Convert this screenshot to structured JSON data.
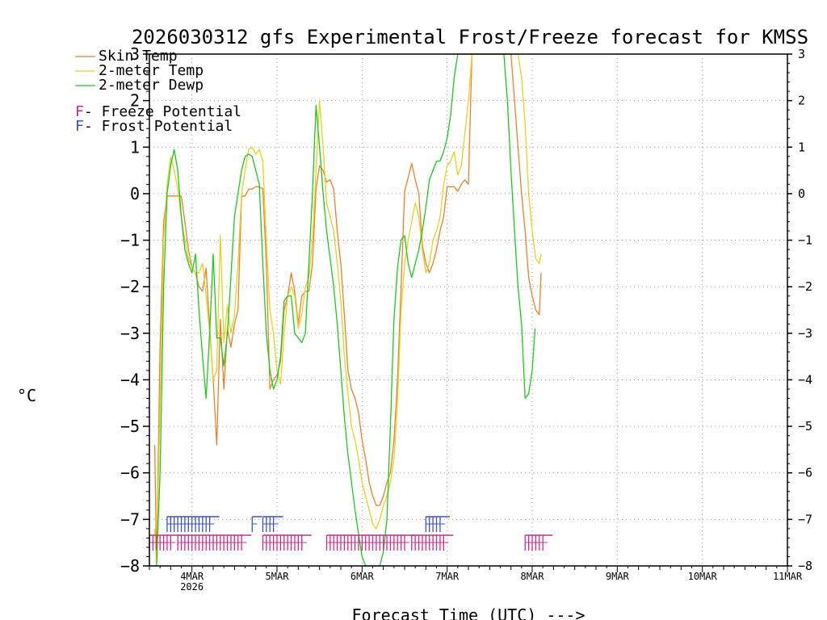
{
  "chart_data": {
    "type": "line",
    "title": "2026030312 gfs Experimental Frost/Freeze forecast for KMSS",
    "xlabel": "Forecast Time (UTC) --->",
    "ylabel": "°C",
    "ylim": [
      -8,
      3
    ],
    "yticks": [
      3,
      2,
      1,
      0,
      -1,
      -2,
      -3,
      -4,
      -5,
      -6,
      -7,
      -8
    ],
    "ytick_labels": [
      "3",
      "2",
      "1",
      "0",
      "−1",
      "−2",
      "−3",
      "−4",
      "−5",
      "−6",
      "−7",
      "−8"
    ],
    "xlim_hours": [
      12,
      192
    ],
    "xticks": [
      {
        "hour": 24,
        "label": "4MAR",
        "sublabel": "2026"
      },
      {
        "hour": 48,
        "label": "5MAR"
      },
      {
        "hour": 72,
        "label": "6MAR"
      },
      {
        "hour": 96,
        "label": "7MAR"
      },
      {
        "hour": 120,
        "label": "8MAR"
      },
      {
        "hour": 144,
        "label": "9MAR"
      },
      {
        "hour": 168,
        "label": "10MAR"
      },
      {
        "hour": 192,
        "label": "11MAR"
      }
    ],
    "grid": true,
    "legend": [
      {
        "name": "Skin Temp",
        "color": "#f07f2a"
      },
      {
        "name": "2-meter Temp",
        "color": "#e6d21e"
      },
      {
        "name": "2-meter Dewp",
        "color": "#1ec81e"
      }
    ],
    "potential_legend": [
      {
        "glyph": "F",
        "text": " - Freeze Potential",
        "color": "#d2288c"
      },
      {
        "glyph": "F",
        "text": " - Frost Potential",
        "color": "#3c50c8"
      }
    ],
    "series": [
      {
        "name": "Skin Temp",
        "color": "#f07f2a",
        "points": [
          [
            13.5,
            -5.4
          ],
          [
            14,
            -8.2
          ],
          [
            15,
            -3.3
          ],
          [
            16,
            -0.6
          ],
          [
            17,
            -0.05
          ],
          [
            18,
            -0.05
          ],
          [
            19,
            -0.05
          ],
          [
            20,
            -0.05
          ],
          [
            21,
            -0.05
          ],
          [
            22,
            -0.6
          ],
          [
            23,
            -1.2
          ],
          [
            24,
            -1.6
          ],
          [
            25,
            -1.7
          ],
          [
            26,
            -2.0
          ],
          [
            27,
            -2.1
          ],
          [
            28,
            -1.6
          ],
          [
            29,
            -2.9
          ],
          [
            30,
            -4.0
          ],
          [
            31,
            -5.4
          ],
          [
            32,
            -2.7
          ],
          [
            33,
            -4.2
          ],
          [
            34,
            -2.9
          ],
          [
            35,
            -3.3
          ],
          [
            36,
            -2.8
          ],
          [
            37,
            -2.5
          ],
          [
            38,
            -0.05
          ],
          [
            39,
            -0.05
          ],
          [
            40,
            0.1
          ],
          [
            41,
            0.1
          ],
          [
            42,
            0.15
          ],
          [
            43,
            0.15
          ],
          [
            44,
            0.1
          ],
          [
            45,
            -1.5
          ],
          [
            46,
            -4.2
          ],
          [
            47,
            -4.0
          ],
          [
            48,
            -3.9
          ],
          [
            49,
            -3.6
          ],
          [
            50,
            -2.5
          ],
          [
            51,
            -2.2
          ],
          [
            52,
            -1.7
          ],
          [
            53,
            -2.1
          ],
          [
            54,
            -2.8
          ],
          [
            55,
            -2.2
          ],
          [
            56,
            -2.1
          ],
          [
            57,
            -2.1
          ],
          [
            58,
            -1.5
          ],
          [
            59,
            0.1
          ],
          [
            60,
            0.6
          ],
          [
            61,
            0.5
          ],
          [
            62,
            0.25
          ],
          [
            63,
            0.3
          ],
          [
            64,
            0.1
          ],
          [
            65,
            -0.8
          ],
          [
            66,
            -1.5
          ],
          [
            67,
            -2.6
          ],
          [
            68,
            -3.8
          ],
          [
            69,
            -4.2
          ],
          [
            70,
            -4.4
          ],
          [
            71,
            -4.7
          ],
          [
            72,
            -5.3
          ],
          [
            73,
            -5.7
          ],
          [
            74,
            -6.2
          ],
          [
            75,
            -6.5
          ],
          [
            76,
            -6.7
          ],
          [
            77,
            -6.7
          ],
          [
            78,
            -6.5
          ],
          [
            79,
            -6.2
          ],
          [
            80,
            -6.0
          ],
          [
            81,
            -5.3
          ],
          [
            82,
            -4.0
          ],
          [
            83,
            -2.0
          ],
          [
            84,
            0.05
          ],
          [
            85,
            0.35
          ],
          [
            86,
            0.65
          ],
          [
            87,
            0.3
          ],
          [
            88,
            0.0
          ],
          [
            89,
            -1.1
          ],
          [
            90,
            -1.5
          ],
          [
            91,
            -1.7
          ],
          [
            92,
            -1.5
          ],
          [
            93,
            -1.2
          ],
          [
            94,
            -0.8
          ],
          [
            95,
            -0.5
          ],
          [
            96,
            0.15
          ],
          [
            97,
            0.15
          ],
          [
            98,
            0.15
          ],
          [
            99,
            0.05
          ],
          [
            100,
            0.2
          ],
          [
            101,
            0.3
          ],
          [
            102,
            0.2
          ],
          [
            103,
            3.3
          ],
          [
            114,
            3.3
          ],
          [
            115,
            2.0
          ],
          [
            116,
            1.0
          ],
          [
            117,
            0.0
          ],
          [
            118,
            -0.8
          ],
          [
            119,
            -1.8
          ],
          [
            120,
            -2.2
          ],
          [
            121,
            -2.5
          ],
          [
            122,
            -2.6
          ],
          [
            122.5,
            -1.7
          ]
        ]
      },
      {
        "name": "2-meter Temp",
        "color": "#e6d21e",
        "points": [
          [
            13.5,
            -7.2
          ],
          [
            14,
            -8.2
          ],
          [
            15,
            -4.5
          ],
          [
            16,
            -1.0
          ],
          [
            17,
            0.2
          ],
          [
            18,
            0.8
          ],
          [
            19,
            0.5
          ],
          [
            20,
            0.1
          ],
          [
            21,
            -0.5
          ],
          [
            22,
            -1.0
          ],
          [
            23,
            -1.4
          ],
          [
            24,
            -1.6
          ],
          [
            25,
            -1.7
          ],
          [
            26,
            -1.7
          ],
          [
            27,
            -1.5
          ],
          [
            28,
            -2.2
          ],
          [
            29,
            -3.0
          ],
          [
            30,
            -4.0
          ],
          [
            31,
            -3.8
          ],
          [
            32,
            -0.9
          ],
          [
            33,
            -3.2
          ],
          [
            34,
            -2.4
          ],
          [
            35,
            -3.0
          ],
          [
            36,
            -2.6
          ],
          [
            37,
            -1.5
          ],
          [
            38,
            0.0
          ],
          [
            39,
            0.5
          ],
          [
            40,
            0.95
          ],
          [
            41,
            1.0
          ],
          [
            42,
            0.85
          ],
          [
            43,
            0.95
          ],
          [
            44,
            0.7
          ],
          [
            45,
            -1.0
          ],
          [
            46,
            -2.5
          ],
          [
            47,
            -3.0
          ],
          [
            48,
            -3.8
          ],
          [
            49,
            -4.1
          ],
          [
            50,
            -3.0
          ],
          [
            51,
            -2.2
          ],
          [
            52,
            -2.0
          ],
          [
            53,
            -2.2
          ],
          [
            54,
            -2.9
          ],
          [
            55,
            -2.6
          ],
          [
            56,
            -2.0
          ],
          [
            57,
            -1.8
          ],
          [
            58,
            -1.0
          ],
          [
            59,
            0.5
          ],
          [
            60,
            2.0
          ],
          [
            61,
            1.0
          ],
          [
            62,
            -0.2
          ],
          [
            63,
            -0.5
          ],
          [
            64,
            -0.8
          ],
          [
            65,
            -1.5
          ],
          [
            66,
            -2.3
          ],
          [
            67,
            -3.5
          ],
          [
            68,
            -4.3
          ],
          [
            69,
            -5.0
          ],
          [
            70,
            -5.3
          ],
          [
            71,
            -5.7
          ],
          [
            72,
            -6.2
          ],
          [
            73,
            -6.5
          ],
          [
            74,
            -6.8
          ],
          [
            75,
            -7.1
          ],
          [
            76,
            -7.2
          ],
          [
            77,
            -7.0
          ],
          [
            78,
            -6.7
          ],
          [
            79,
            -6.5
          ],
          [
            80,
            -6.2
          ],
          [
            81,
            -5.7
          ],
          [
            82,
            -4.5
          ],
          [
            83,
            -2.5
          ],
          [
            84,
            -1.5
          ],
          [
            85,
            -1.0
          ],
          [
            86,
            -0.6
          ],
          [
            87,
            -0.2
          ],
          [
            88,
            -0.5
          ],
          [
            89,
            -1.2
          ],
          [
            90,
            -1.7
          ],
          [
            91,
            -1.5
          ],
          [
            92,
            -1.0
          ],
          [
            93,
            -0.8
          ],
          [
            94,
            -0.5
          ],
          [
            95,
            0.2
          ],
          [
            96,
            0.6
          ],
          [
            97,
            0.7
          ],
          [
            98,
            0.9
          ],
          [
            99,
            0.4
          ],
          [
            100,
            0.6
          ],
          [
            101,
            1.3
          ],
          [
            102,
            2.0
          ],
          [
            103,
            3.3
          ],
          [
            116,
            3.3
          ],
          [
            117,
            2.5
          ],
          [
            118,
            1.5
          ],
          [
            119,
            0.0
          ],
          [
            120,
            -0.8
          ],
          [
            121,
            -1.4
          ],
          [
            122,
            -1.5
          ],
          [
            122.5,
            -1.3
          ]
        ]
      },
      {
        "name": "2-meter Dewp",
        "color": "#1ec81e",
        "points": [
          [
            14,
            -8.2
          ],
          [
            15,
            -6.0
          ],
          [
            16,
            -2.0
          ],
          [
            17,
            0.0
          ],
          [
            18,
            0.6
          ],
          [
            19,
            0.95
          ],
          [
            20,
            0.5
          ],
          [
            21,
            -0.5
          ],
          [
            22,
            -1.2
          ],
          [
            23,
            -1.5
          ],
          [
            24,
            -1.7
          ],
          [
            25,
            -1.3
          ],
          [
            26,
            -2.5
          ],
          [
            27,
            -3.5
          ],
          [
            28,
            -4.4
          ],
          [
            29,
            -3.0
          ],
          [
            30,
            -1.3
          ],
          [
            31,
            -3.1
          ],
          [
            32,
            -3.1
          ],
          [
            33,
            -3.7
          ],
          [
            34,
            -3.0
          ],
          [
            35,
            -1.8
          ],
          [
            36,
            -0.5
          ],
          [
            37,
            0.0
          ],
          [
            38,
            0.5
          ],
          [
            39,
            0.8
          ],
          [
            40,
            0.85
          ],
          [
            41,
            0.8
          ],
          [
            42,
            0.5
          ],
          [
            43,
            0.2
          ],
          [
            44,
            -1.5
          ],
          [
            45,
            -3.0
          ],
          [
            46,
            -3.8
          ],
          [
            47,
            -4.2
          ],
          [
            48,
            -4.0
          ],
          [
            49,
            -3.5
          ],
          [
            50,
            -2.3
          ],
          [
            51,
            -2.2
          ],
          [
            52,
            -2.2
          ],
          [
            53,
            -3.0
          ],
          [
            54,
            -3.1
          ],
          [
            55,
            -3.2
          ],
          [
            56,
            -3.0
          ],
          [
            57,
            -1.5
          ],
          [
            58,
            0.0
          ],
          [
            59,
            1.9
          ],
          [
            60,
            1.0
          ],
          [
            61,
            0.0
          ],
          [
            62,
            -0.8
          ],
          [
            63,
            -1.4
          ],
          [
            64,
            -2.0
          ],
          [
            65,
            -2.8
          ],
          [
            66,
            -3.8
          ],
          [
            67,
            -4.8
          ],
          [
            68,
            -5.6
          ],
          [
            69,
            -6.2
          ],
          [
            70,
            -6.8
          ],
          [
            71,
            -7.3
          ],
          [
            72,
            -7.8
          ],
          [
            73,
            -8.1
          ],
          [
            74,
            -8.2
          ],
          [
            75,
            -8.2
          ],
          [
            76,
            -8.2
          ],
          [
            77,
            -8.0
          ],
          [
            78,
            -7.7
          ],
          [
            79,
            -7.0
          ],
          [
            80,
            -5.0
          ],
          [
            81,
            -2.7
          ],
          [
            82,
            -1.6
          ],
          [
            83,
            -1.0
          ],
          [
            84,
            -0.9
          ],
          [
            85,
            -1.5
          ],
          [
            86,
            -1.8
          ],
          [
            87,
            -1.5
          ],
          [
            88,
            -1.2
          ],
          [
            89,
            -0.8
          ],
          [
            90,
            -0.3
          ],
          [
            91,
            0.3
          ],
          [
            92,
            0.5
          ],
          [
            93,
            0.7
          ],
          [
            94,
            0.7
          ],
          [
            95,
            0.9
          ],
          [
            96,
            1.2
          ],
          [
            97,
            1.7
          ],
          [
            98,
            2.5
          ],
          [
            99,
            3.3
          ],
          [
            112,
            3.3
          ],
          [
            113,
            2.0
          ],
          [
            114,
            0.5
          ],
          [
            115,
            -0.8
          ],
          [
            116,
            -2.0
          ],
          [
            117,
            -2.8
          ],
          [
            118,
            -4.4
          ],
          [
            119,
            -4.3
          ],
          [
            120,
            -3.8
          ],
          [
            120.8,
            -2.9
          ]
        ]
      }
    ],
    "frost_potential_hours": [
      [
        17,
        29
      ],
      [
        41,
        41
      ],
      [
        44,
        47
      ],
      [
        90,
        94
      ]
    ],
    "freeze_potential_hours": [
      [
        12,
        18
      ],
      [
        20,
        38
      ],
      [
        44,
        55
      ],
      [
        62,
        84
      ],
      [
        86,
        95
      ],
      [
        118,
        123
      ]
    ]
  }
}
